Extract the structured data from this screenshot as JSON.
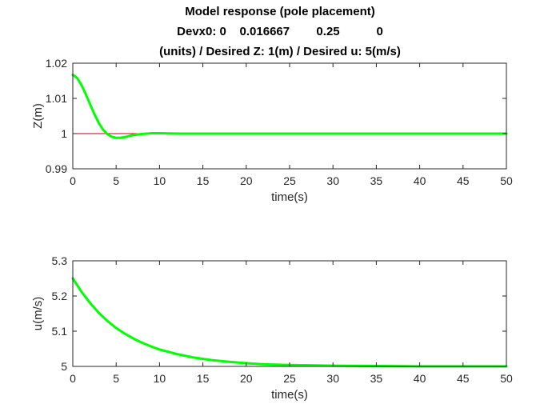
{
  "figure": {
    "title_lines": [
      "Model response (pole placement)",
      "Devx0: 0    0.016667        0.25           0",
      "(units) / Desired Z: 1(m) / Desired u: 5(m/s)"
    ]
  },
  "colors": {
    "response": "#00ff00",
    "reference": "#cc0000",
    "axes": "#262626",
    "background": "#ffffff"
  },
  "chart_data": [
    {
      "type": "line",
      "xlabel": "time(s)",
      "ylabel": "Z(m)",
      "xlim": [
        0,
        50
      ],
      "ylim": [
        0.99,
        1.02
      ],
      "xticks": [
        0,
        5,
        10,
        15,
        20,
        25,
        30,
        35,
        40,
        45,
        50
      ],
      "xtick_labels": [
        "0",
        "5",
        "10",
        "15",
        "20",
        "25",
        "30",
        "35",
        "40",
        "45",
        "50"
      ],
      "yticks": [
        0.99,
        1,
        1.01,
        1.02
      ],
      "ytick_labels": [
        "0.99",
        "1",
        "1.01",
        "1.02"
      ],
      "grid": false,
      "series": [
        {
          "role": "response",
          "x": [
            0,
            0.5,
            1,
            1.5,
            2,
            2.5,
            3,
            3.5,
            4,
            4.5,
            5,
            5.5,
            6,
            6.5,
            7,
            8,
            9,
            10,
            12,
            15,
            20,
            30,
            40,
            50
          ],
          "y": [
            1.0167,
            1.0158,
            1.0138,
            1.0112,
            1.0083,
            1.0055,
            1.003,
            1.0011,
            0.9998,
            0.9991,
            0.9988,
            0.9988,
            0.999,
            0.9993,
            0.9996,
            0.9999,
            1.0001,
            1.0001,
            1.0,
            1.0,
            1.0,
            1.0,
            1.0,
            1.0
          ]
        },
        {
          "role": "reference",
          "x": [
            0,
            50
          ],
          "y": [
            1,
            1
          ]
        }
      ]
    },
    {
      "type": "line",
      "xlabel": "time(s)",
      "ylabel": "u(m/s)",
      "xlim": [
        0,
        50
      ],
      "ylim": [
        5,
        5.3
      ],
      "xticks": [
        0,
        5,
        10,
        15,
        20,
        25,
        30,
        35,
        40,
        45,
        50
      ],
      "xtick_labels": [
        "0",
        "5",
        "10",
        "15",
        "20",
        "25",
        "30",
        "35",
        "40",
        "45",
        "50"
      ],
      "yticks": [
        5,
        5.1,
        5.2,
        5.3
      ],
      "ytick_labels": [
        "5",
        "5.1",
        "5.2",
        "5.3"
      ],
      "grid": false,
      "series": [
        {
          "role": "response",
          "x": [
            0,
            1,
            2,
            3,
            4,
            5,
            6,
            7,
            8,
            9,
            10,
            12,
            14,
            16,
            18,
            20,
            22,
            25,
            30,
            35,
            40,
            45,
            50
          ],
          "y": [
            5.25,
            5.212,
            5.18,
            5.152,
            5.129,
            5.109,
            5.093,
            5.079,
            5.067,
            5.057,
            5.048,
            5.035,
            5.025,
            5.018,
            5.013,
            5.009,
            5.006,
            5.004,
            5.002,
            5.001,
            5.0,
            5.0,
            5.0
          ]
        },
        {
          "role": "reference",
          "x": [
            0,
            50
          ],
          "y": [
            5,
            5
          ]
        }
      ]
    }
  ]
}
